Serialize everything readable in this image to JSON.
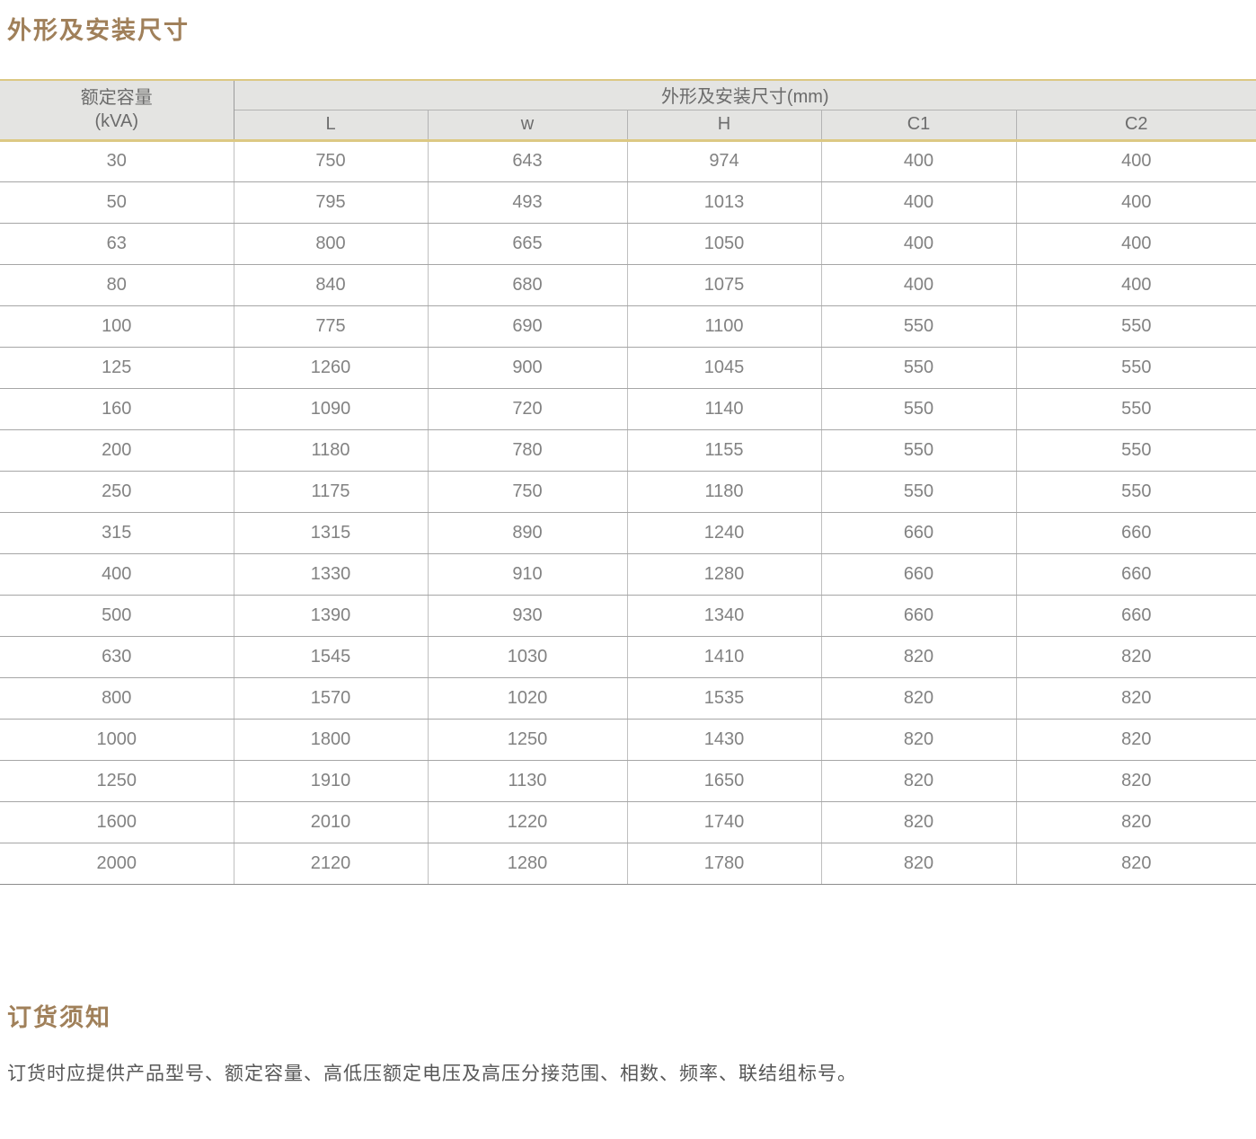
{
  "page": {
    "title": "外形及安装尺寸",
    "notes_heading": "订货须知",
    "notes_body": "订货时应提供产品型号、额定容量、高低压额定电压及高压分接范围、相数、频率、联结组标号。"
  },
  "colors": {
    "accent_brown": "#a0805a",
    "gold_border": "#dcc883",
    "header_bg": "#e4e4e2",
    "cell_text": "#828282",
    "note_text": "#575757"
  },
  "table": {
    "capacity_header_line1": "额定容量",
    "capacity_header_line2": "(kVA)",
    "group_header": "外形及安装尺寸(mm)",
    "dim_columns": [
      "L",
      "w",
      "H",
      "C1",
      "C2"
    ],
    "rows": [
      [
        "30",
        "750",
        "643",
        "974",
        "400",
        "400"
      ],
      [
        "50",
        "795",
        "493",
        "1013",
        "400",
        "400"
      ],
      [
        "63",
        "800",
        "665",
        "1050",
        "400",
        "400"
      ],
      [
        "80",
        "840",
        "680",
        "1075",
        "400",
        "400"
      ],
      [
        "100",
        "775",
        "690",
        "1100",
        "550",
        "550"
      ],
      [
        "125",
        "1260",
        "900",
        "1045",
        "550",
        "550"
      ],
      [
        "160",
        "1090",
        "720",
        "1140",
        "550",
        "550"
      ],
      [
        "200",
        "1180",
        "780",
        "1155",
        "550",
        "550"
      ],
      [
        "250",
        "1175",
        "750",
        "1180",
        "550",
        "550"
      ],
      [
        "315",
        "1315",
        "890",
        "1240",
        "660",
        "660"
      ],
      [
        "400",
        "1330",
        "910",
        "1280",
        "660",
        "660"
      ],
      [
        "500",
        "1390",
        "930",
        "1340",
        "660",
        "660"
      ],
      [
        "630",
        "1545",
        "1030",
        "1410",
        "820",
        "820"
      ],
      [
        "800",
        "1570",
        "1020",
        "1535",
        "820",
        "820"
      ],
      [
        "1000",
        "1800",
        "1250",
        "1430",
        "820",
        "820"
      ],
      [
        "1250",
        "1910",
        "1130",
        "1650",
        "820",
        "820"
      ],
      [
        "1600",
        "2010",
        "1220",
        "1740",
        "820",
        "820"
      ],
      [
        "2000",
        "2120",
        "1280",
        "1780",
        "820",
        "820"
      ]
    ]
  }
}
